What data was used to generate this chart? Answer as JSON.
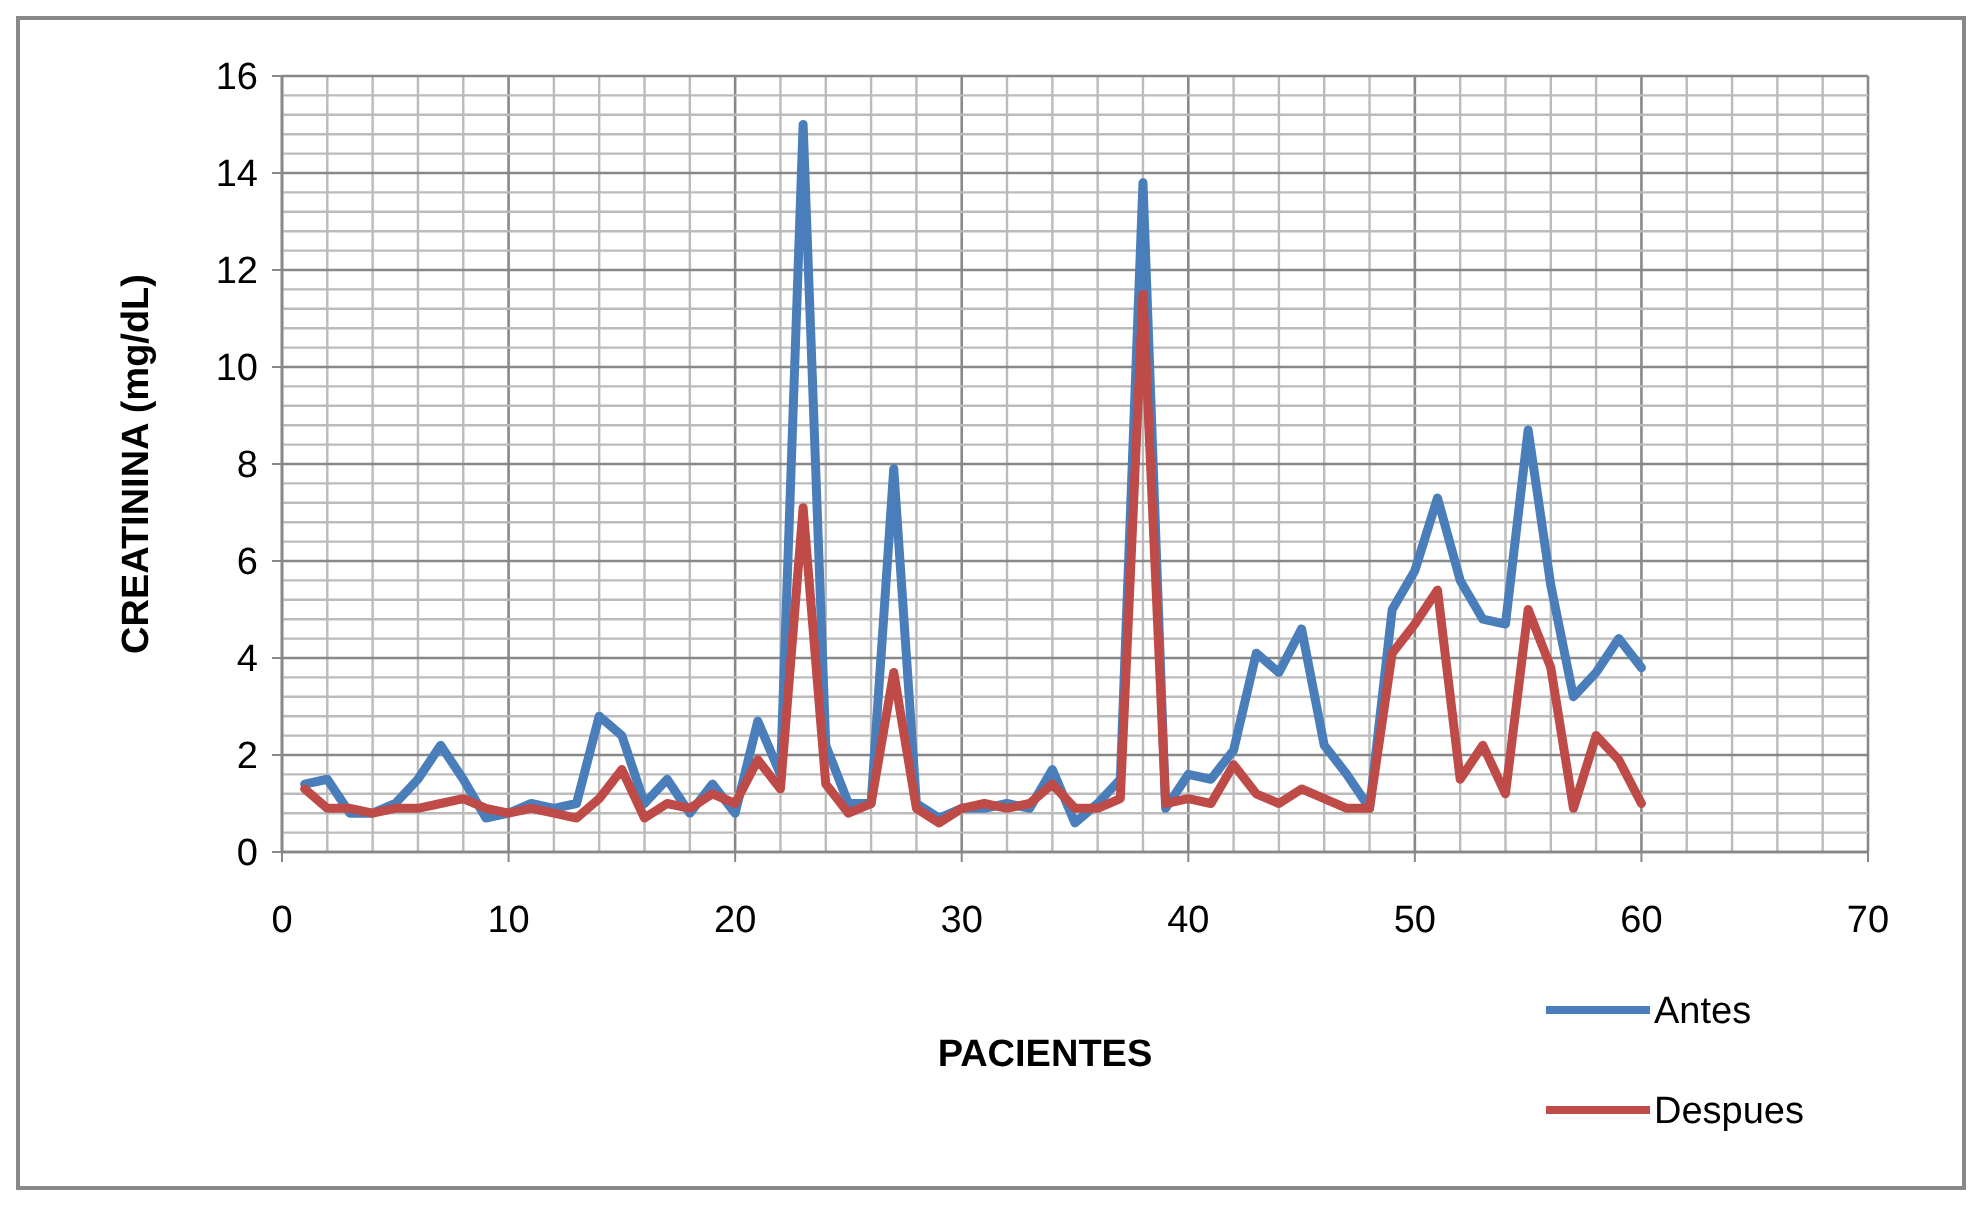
{
  "chart_data": {
    "type": "line",
    "xlabel": "PACIENTES",
    "ylabel": "CREATININA (mg/dL)",
    "x": [
      1,
      2,
      3,
      4,
      5,
      6,
      7,
      8,
      9,
      10,
      11,
      12,
      13,
      14,
      15,
      16,
      17,
      18,
      19,
      20,
      21,
      22,
      23,
      24,
      25,
      26,
      27,
      28,
      29,
      30,
      31,
      32,
      33,
      34,
      35,
      36,
      37,
      38,
      39,
      40,
      41,
      42,
      43,
      44,
      45,
      46,
      47,
      48,
      49,
      50,
      51,
      52,
      53,
      54,
      55,
      56,
      57,
      58,
      59,
      60
    ],
    "series": [
      {
        "name": "Antes",
        "color": "#4a7ebb",
        "values": [
          1.4,
          1.5,
          0.8,
          0.8,
          1.0,
          1.5,
          2.2,
          1.5,
          0.7,
          0.8,
          1.0,
          0.9,
          1.0,
          2.8,
          2.4,
          1.0,
          1.5,
          0.8,
          1.4,
          0.8,
          2.7,
          1.6,
          15.0,
          2.2,
          1.0,
          1.0,
          7.9,
          1.0,
          0.7,
          0.9,
          0.9,
          1.0,
          0.9,
          1.7,
          0.6,
          1.0,
          1.5,
          13.8,
          0.9,
          1.6,
          1.5,
          2.1,
          4.1,
          3.7,
          4.6,
          2.2,
          1.6,
          0.9,
          5.0,
          5.8,
          7.3,
          5.6,
          4.8,
          4.7,
          8.7,
          5.5,
          3.2,
          3.7,
          4.4,
          3.8
        ]
      },
      {
        "name": "Despues",
        "color": "#be4b48",
        "values": [
          1.3,
          0.9,
          0.9,
          0.8,
          0.9,
          0.9,
          1.0,
          1.1,
          0.9,
          0.8,
          0.9,
          0.8,
          0.7,
          1.1,
          1.7,
          0.7,
          1.0,
          0.9,
          1.2,
          1.0,
          1.9,
          1.3,
          7.1,
          1.4,
          0.8,
          1.0,
          3.7,
          0.9,
          0.6,
          0.9,
          1.0,
          0.9,
          1.0,
          1.4,
          0.9,
          0.9,
          1.1,
          11.5,
          1.0,
          1.1,
          1.0,
          1.8,
          1.2,
          1.0,
          1.3,
          1.1,
          0.9,
          0.9,
          4.1,
          4.7,
          5.4,
          1.5,
          2.2,
          1.2,
          5.0,
          3.8,
          0.9,
          2.4,
          1.9,
          1.0
        ]
      }
    ],
    "xlim": [
      0,
      70
    ],
    "xticks": [
      0,
      10,
      20,
      30,
      40,
      50,
      60,
      70
    ],
    "ylim": [
      0,
      16
    ],
    "yticks": [
      0,
      2,
      4,
      6,
      8,
      10,
      12,
      14,
      16
    ],
    "grid": true,
    "legend": "bottom right",
    "marker": "none",
    "line_style": "solid"
  }
}
